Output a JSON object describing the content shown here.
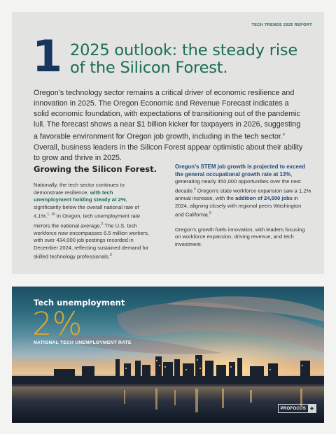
{
  "header": {
    "report_tag": "TECH TRENDS 2025 REPORT"
  },
  "section": {
    "number": "1",
    "title": "2025 outlook: the steady rise of the Silicon Forest."
  },
  "intro": {
    "p1": "Oregon’s technology sector remains a critical driver of economic resilience and innovation in 2025. The Oregon Economic and Revenue Forecast indicates a solid economic foundation, with expectations of transitioning out of the pandemic lull. The forecast shows a near $1 billion kicker for taxpayers in 2026, suggesting a favorable environment for Oregon job growth, including in the tech sector.",
    "p1_sup": "9",
    "p2": " Overall, business leaders in the Silicon Forest appear optimistic about their ability to grow and thrive in 2025."
  },
  "left_column": {
    "heading": "Growing the Silicon Forest.",
    "t1": "Nationally, the tech sector continues to demonstrate resilience, ",
    "t1_hl": "with tech unemployment holding steady at 2%",
    "t2": ", significantly below the overall national rate of 4.1%.",
    "t2_sup": "1, 10",
    "t3": " In Oregon, tech unemployment rate mirrors the national average.",
    "t3_sup": "2",
    "t4": " The U.S. tech workforce now encompasses 6.5 million workers, with over 434,000 job postings recorded in December 2024, reflecting sustained demand for skilled technology professionals.",
    "t4_sup": "3"
  },
  "right_column": {
    "lead": "Oregon’s STEM job growth is projected to exceed the general occupational growth rate at 13%",
    "t1": ", generating nearly 450,000 opportunities over the next decade.",
    "t1_sup": "4",
    "t2": " Oregon’s state workforce expansion saw a 1.2% annual increase, with the ",
    "t2_hl": "addition of 24,500 jobs",
    "t3": " in 2024, aligning closely with regional peers Washington and California.",
    "t3_sup": "6",
    "p2": "Oregon’s growth fuels innovation, with leaders focusing on workforce expansion, driving revenue, and tech investment."
  },
  "photo_panel": {
    "title": "Tech unemployment",
    "stat": "2%",
    "caption": "NATIONAL TECH UNEMPLOYMENT RATE",
    "logo_text": "PROFOCUS"
  },
  "colors": {
    "accent_green": "#1a6e55",
    "accent_navy": "#17355e",
    "stat_gold": "#e0a72e"
  }
}
